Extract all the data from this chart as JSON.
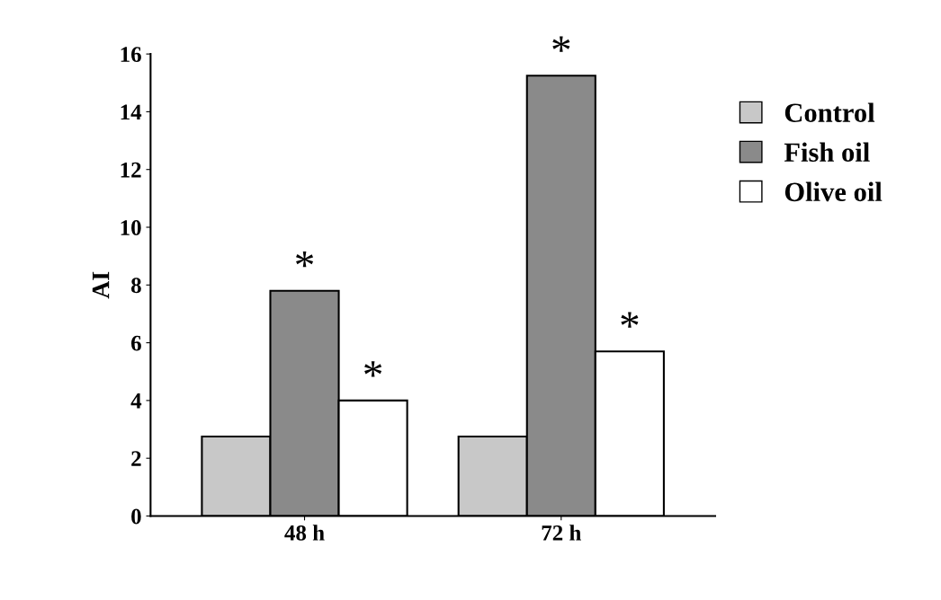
{
  "chart_data": {
    "type": "bar",
    "ylabel": "AI",
    "categories": [
      "48 h",
      "72 h"
    ],
    "series": [
      {
        "name": "Control",
        "color": "#c8c8c8",
        "values": [
          2.75,
          2.75
        ]
      },
      {
        "name": "Fish oil",
        "color": "#8a8a8a",
        "values": [
          7.8,
          15.25
        ],
        "value_labels": [
          "*",
          "*"
        ]
      },
      {
        "name": "Olive oil",
        "color": "#ffffff",
        "values": [
          4.0,
          5.7
        ],
        "value_labels": [
          "*",
          "*"
        ]
      }
    ],
    "ylim": [
      0,
      16
    ],
    "yticks": [
      0,
      2,
      4,
      6,
      8,
      10,
      12,
      14,
      16
    ],
    "grid": false,
    "legend": "top right"
  }
}
